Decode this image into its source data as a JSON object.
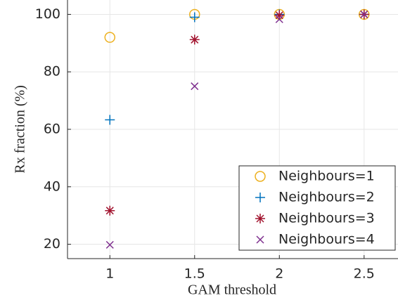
{
  "chart_data": {
    "type": "scatter",
    "x_label": "GAM threshold",
    "y_label": "Rx fraction (%)",
    "x": [
      1,
      1.5,
      2,
      2.5
    ],
    "xlim": [
      0.75,
      2.7
    ],
    "xticks": [
      1,
      1.5,
      2,
      2.5
    ],
    "ylim": [
      15,
      105
    ],
    "yticks": [
      20,
      40,
      60,
      80,
      100
    ],
    "grid": true,
    "legend": "bottom-right",
    "series": [
      {
        "name": "Neighbours=1",
        "color": "#EDB120",
        "marker": "o",
        "values": [
          92,
          100,
          100,
          100
        ]
      },
      {
        "name": "Neighbours=2",
        "color": "#0072BD",
        "marker": "+",
        "values": [
          63.3,
          99,
          100,
          100
        ]
      },
      {
        "name": "Neighbours=3",
        "color": "#A2142F",
        "marker": "*",
        "values": [
          31.7,
          91.2,
          99.7,
          100
        ]
      },
      {
        "name": "Neighbours=4",
        "color": "#7E2F8E",
        "marker": "x",
        "values": [
          19.8,
          75,
          98.3,
          100
        ]
      }
    ]
  }
}
